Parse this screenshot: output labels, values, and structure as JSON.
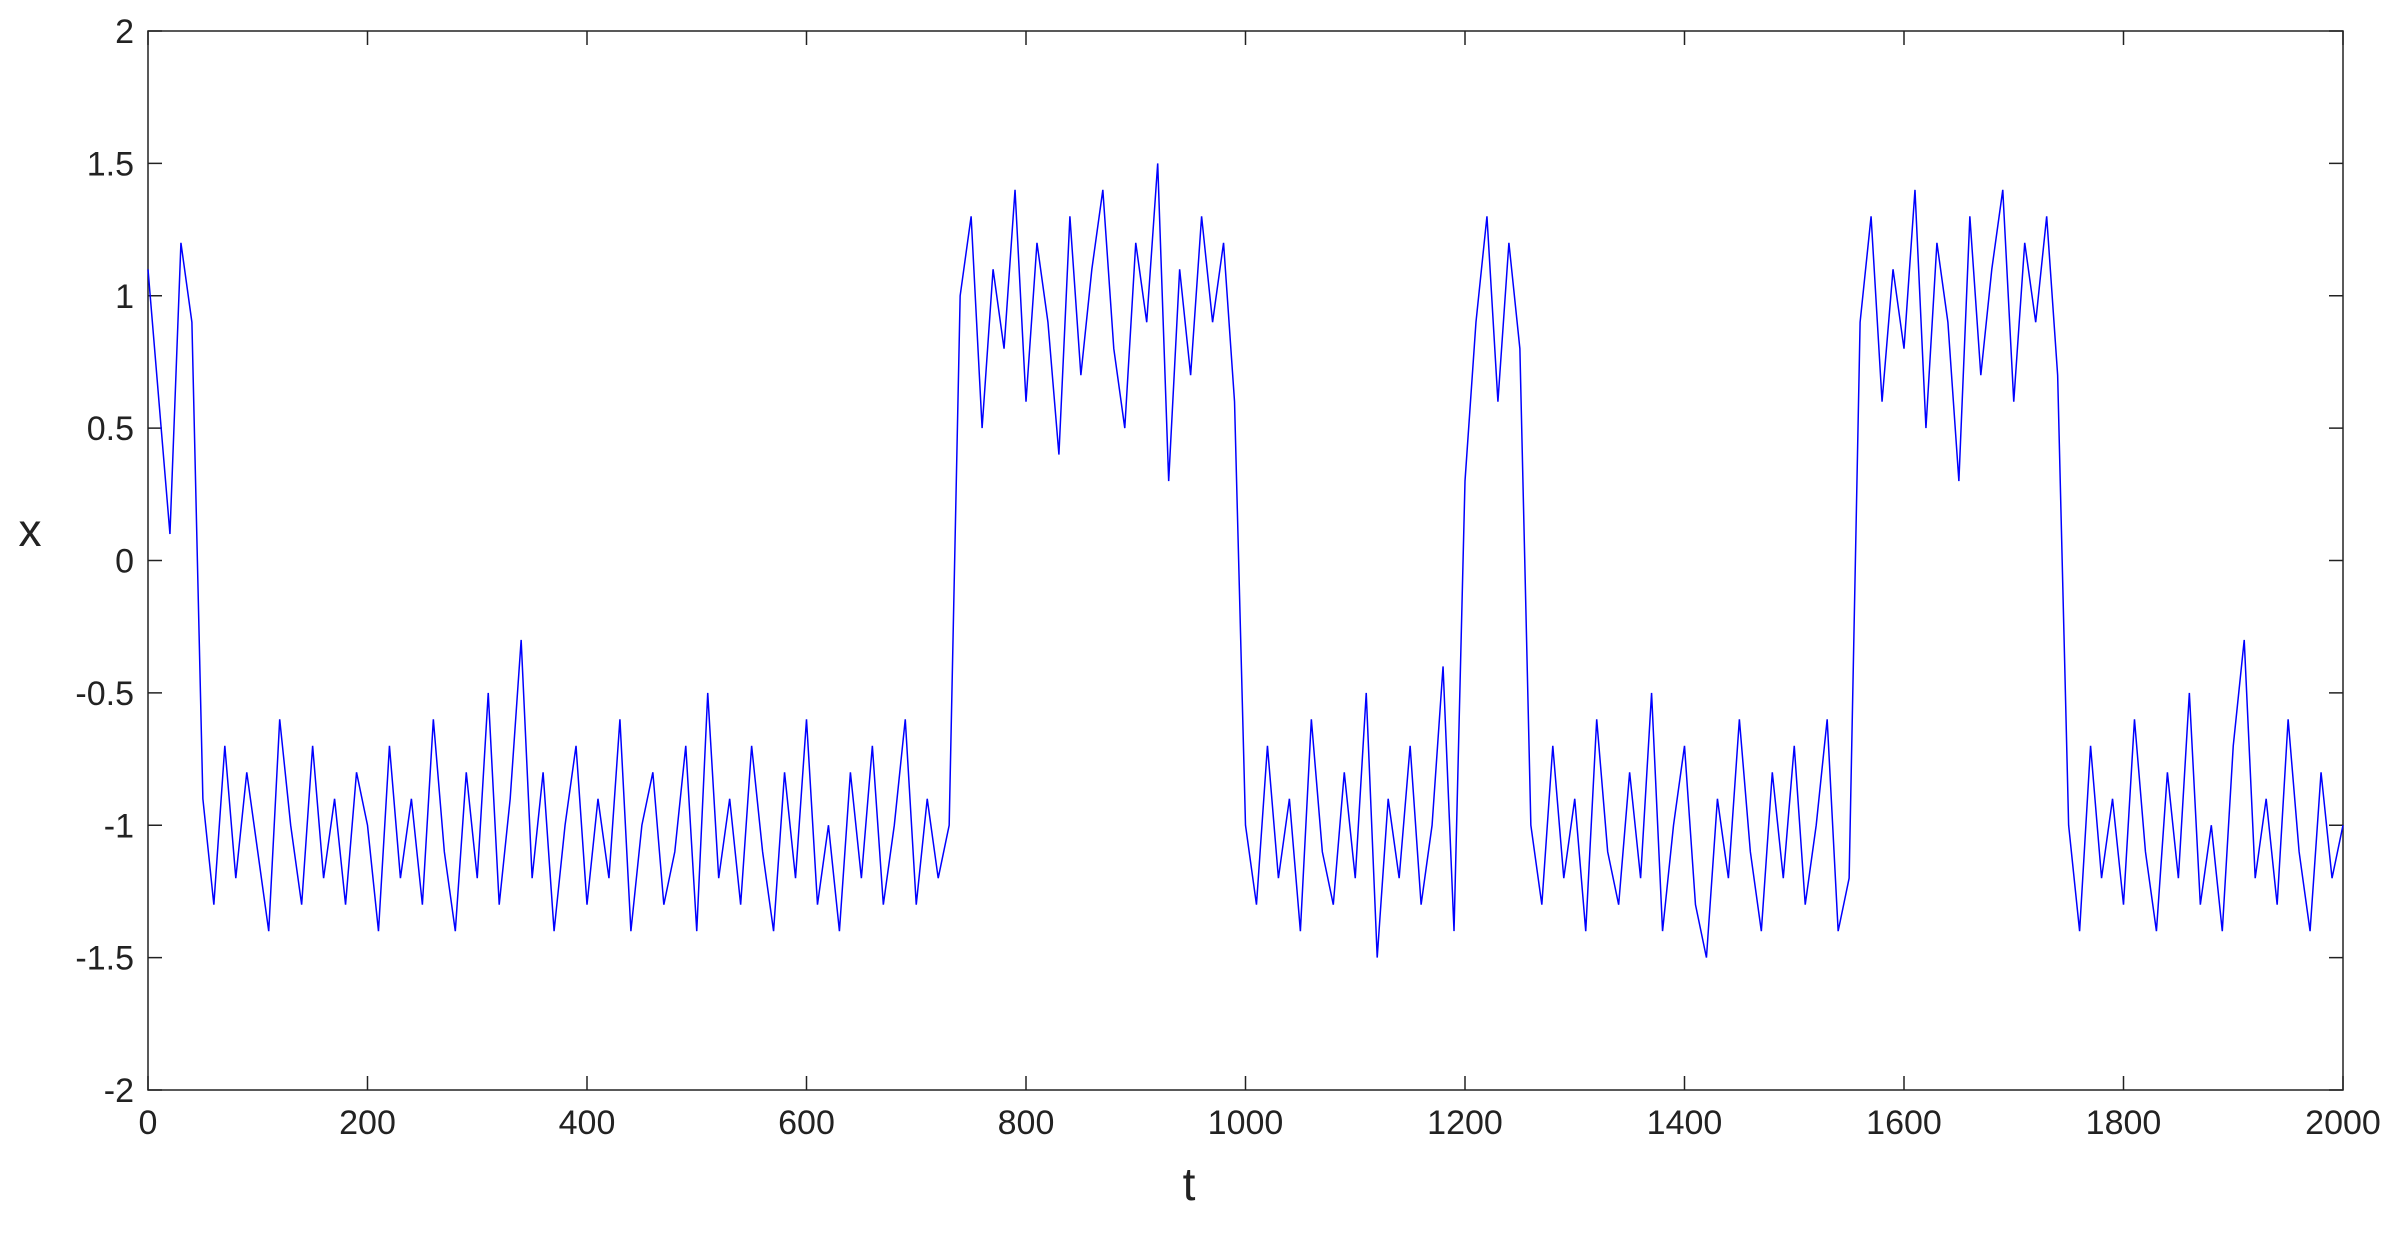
{
  "chart_data": {
    "type": "line",
    "xlabel": "t",
    "ylabel": "x",
    "color": "#0000ff",
    "x": [
      0,
      10,
      20,
      30,
      40,
      50,
      60,
      70,
      80,
      90,
      100,
      110,
      120,
      130,
      140,
      150,
      160,
      170,
      180,
      190,
      200,
      210,
      220,
      230,
      240,
      250,
      260,
      270,
      280,
      290,
      300,
      310,
      320,
      330,
      340,
      350,
      360,
      370,
      380,
      390,
      400,
      410,
      420,
      430,
      440,
      450,
      460,
      470,
      480,
      490,
      500,
      510,
      520,
      530,
      540,
      550,
      560,
      570,
      580,
      590,
      600,
      610,
      620,
      630,
      640,
      650,
      660,
      670,
      680,
      690,
      700,
      710,
      720,
      730,
      740,
      750,
      760,
      770,
      780,
      790,
      800,
      810,
      820,
      830,
      840,
      850,
      860,
      870,
      880,
      890,
      900,
      910,
      920,
      930,
      940,
      950,
      960,
      970,
      980,
      990,
      1000,
      1010,
      1020,
      1030,
      1040,
      1050,
      1060,
      1070,
      1080,
      1090,
      1100,
      1110,
      1120,
      1130,
      1140,
      1150,
      1160,
      1170,
      1180,
      1190,
      1200,
      1210,
      1220,
      1230,
      1240,
      1250,
      1260,
      1270,
      1280,
      1290,
      1300,
      1310,
      1320,
      1330,
      1340,
      1350,
      1360,
      1370,
      1380,
      1390,
      1400,
      1410,
      1420,
      1430,
      1440,
      1450,
      1460,
      1470,
      1480,
      1490,
      1500,
      1510,
      1520,
      1530,
      1540,
      1550,
      1560,
      1570,
      1580,
      1590,
      1600,
      1610,
      1620,
      1630,
      1640,
      1650,
      1660,
      1670,
      1680,
      1690,
      1700,
      1710,
      1720,
      1730,
      1740,
      1750,
      1760,
      1770,
      1780,
      1790,
      1800,
      1810,
      1820,
      1830,
      1840,
      1850,
      1860,
      1870,
      1880,
      1890,
      1900,
      1910,
      1920,
      1930,
      1940,
      1950,
      1960,
      1970,
      1980,
      1990,
      2000
    ],
    "values": [
      1.1,
      0.6,
      0.1,
      1.2,
      0.9,
      -0.9,
      -1.3,
      -0.7,
      -1.2,
      -0.8,
      -1.1,
      -1.4,
      -0.6,
      -1.0,
      -1.3,
      -0.7,
      -1.2,
      -0.9,
      -1.3,
      -0.8,
      -1.0,
      -1.4,
      -0.7,
      -1.2,
      -0.9,
      -1.3,
      -0.6,
      -1.1,
      -1.4,
      -0.8,
      -1.2,
      -0.5,
      -1.3,
      -0.9,
      -0.3,
      -1.2,
      -0.8,
      -1.4,
      -1.0,
      -0.7,
      -1.3,
      -0.9,
      -1.2,
      -0.6,
      -1.4,
      -1.0,
      -0.8,
      -1.3,
      -1.1,
      -0.7,
      -1.4,
      -0.5,
      -1.2,
      -0.9,
      -1.3,
      -0.7,
      -1.1,
      -1.4,
      -0.8,
      -1.2,
      -0.6,
      -1.3,
      -1.0,
      -1.4,
      -0.8,
      -1.2,
      -0.7,
      -1.3,
      -1.0,
      -0.6,
      -1.3,
      -0.9,
      -1.2,
      -1.0,
      1.0,
      1.3,
      0.5,
      1.1,
      0.8,
      1.4,
      0.6,
      1.2,
      0.9,
      0.4,
      1.3,
      0.7,
      1.1,
      1.4,
      0.8,
      0.5,
      1.2,
      0.9,
      1.5,
      0.3,
      1.1,
      0.7,
      1.3,
      0.9,
      1.2,
      0.6,
      -1.0,
      -1.3,
      -0.7,
      -1.2,
      -0.9,
      -1.4,
      -0.6,
      -1.1,
      -1.3,
      -0.8,
      -1.2,
      -0.5,
      -1.5,
      -0.9,
      -1.2,
      -0.7,
      -1.3,
      -1.0,
      -0.4,
      -1.4,
      0.3,
      0.9,
      1.3,
      0.6,
      1.2,
      0.8,
      -1.0,
      -1.3,
      -0.7,
      -1.2,
      -0.9,
      -1.4,
      -0.6,
      -1.1,
      -1.3,
      -0.8,
      -1.2,
      -0.5,
      -1.4,
      -1.0,
      -0.7,
      -1.3,
      -1.5,
      -0.9,
      -1.2,
      -0.6,
      -1.1,
      -1.4,
      -0.8,
      -1.2,
      -0.7,
      -1.3,
      -1.0,
      -0.6,
      -1.4,
      -1.2,
      0.9,
      1.3,
      0.6,
      1.1,
      0.8,
      1.4,
      0.5,
      1.2,
      0.9,
      0.3,
      1.3,
      0.7,
      1.1,
      1.4,
      0.6,
      1.2,
      0.9,
      1.3,
      0.7,
      -1.0,
      -1.4,
      -0.7,
      -1.2,
      -0.9,
      -1.3,
      -0.6,
      -1.1,
      -1.4,
      -0.8,
      -1.2,
      -0.5,
      -1.3,
      -1.0,
      -1.4,
      -0.7,
      -0.3,
      -1.2,
      -0.9,
      -1.3,
      -0.6,
      -1.1,
      -1.4,
      -0.8,
      -1.2,
      -1.0
    ],
    "xlim": [
      0,
      2000
    ],
    "xticks": [
      0,
      200,
      400,
      600,
      800,
      1000,
      1200,
      1400,
      1600,
      1800,
      2000
    ],
    "ylim": [
      -2,
      2
    ],
    "yticks": [
      -2,
      -1.5,
      -1,
      -0.5,
      0,
      0.5,
      1,
      1.5,
      2
    ],
    "grid": false
  }
}
